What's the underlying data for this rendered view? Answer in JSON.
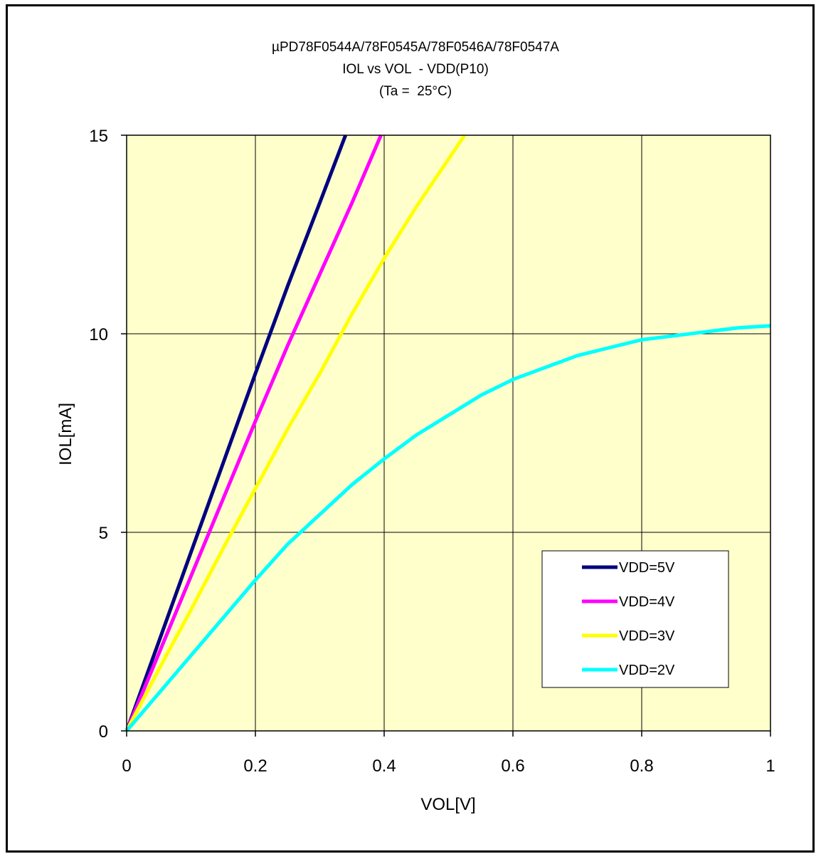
{
  "chart_data": {
    "type": "line",
    "title_lines": [
      "µPD78F0544A/78F0545A/78F0546A/78F0547A",
      "IOL vs VOL  - VDD(P10)",
      "(Ta =  25°C)"
    ],
    "xlabel": "VOL[V]",
    "ylabel": "IOL[mA]",
    "xlim": [
      0,
      1
    ],
    "ylim": [
      0,
      15
    ],
    "x_ticks": [
      "0",
      "0.2",
      "0.4",
      "0.6",
      "0.8",
      "1"
    ],
    "y_ticks": [
      "0",
      "5",
      "10",
      "15"
    ],
    "grid": true,
    "plot_background": "#ffffcc",
    "legend_position": "lower-right",
    "series": [
      {
        "name": "VDD=5V",
        "color": "#000080",
        "x": [
          0,
          0.05,
          0.1,
          0.15,
          0.2,
          0.25,
          0.3,
          0.34
        ],
        "y": [
          0,
          2.25,
          4.5,
          6.75,
          9.0,
          11.2,
          13.3,
          15.0
        ]
      },
      {
        "name": "VDD=4V",
        "color": "#ff00ff",
        "x": [
          0,
          0.05,
          0.1,
          0.15,
          0.2,
          0.25,
          0.3,
          0.35,
          0.395
        ],
        "y": [
          0,
          1.95,
          3.9,
          5.85,
          7.8,
          9.7,
          11.5,
          13.3,
          15.0
        ]
      },
      {
        "name": "VDD=3V",
        "color": "#ffff00",
        "x": [
          0,
          0.05,
          0.1,
          0.15,
          0.2,
          0.25,
          0.3,
          0.35,
          0.4,
          0.45,
          0.5,
          0.525
        ],
        "y": [
          0,
          1.55,
          3.05,
          4.6,
          6.1,
          7.6,
          9.0,
          10.5,
          11.9,
          13.2,
          14.4,
          15.0
        ]
      },
      {
        "name": "VDD=2V",
        "color": "#00ffff",
        "x": [
          0,
          0.05,
          0.1,
          0.15,
          0.2,
          0.25,
          0.3,
          0.35,
          0.4,
          0.45,
          0.5,
          0.55,
          0.6,
          0.65,
          0.7,
          0.75,
          0.8,
          0.85,
          0.9,
          0.95,
          1.0
        ],
        "y": [
          0,
          0.95,
          1.9,
          2.85,
          3.8,
          4.7,
          5.45,
          6.2,
          6.85,
          7.45,
          7.95,
          8.45,
          8.85,
          9.15,
          9.45,
          9.65,
          9.85,
          9.95,
          10.05,
          10.15,
          10.2
        ]
      }
    ]
  }
}
